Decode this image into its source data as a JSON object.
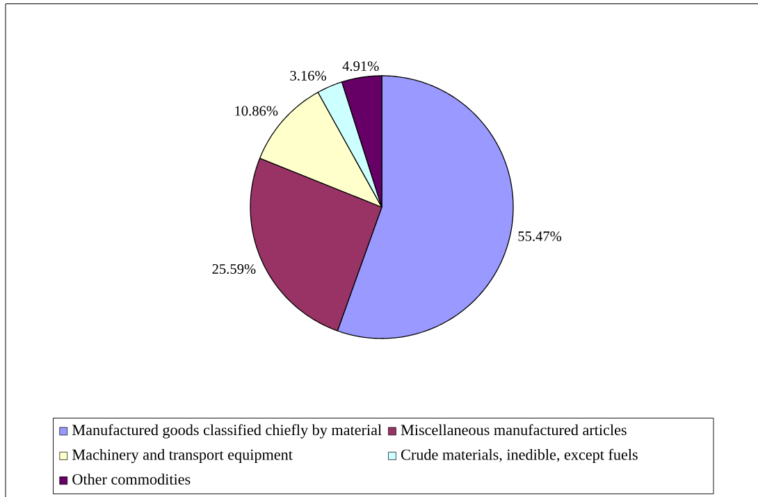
{
  "chart_data": {
    "type": "pie",
    "categories": [
      "Manufactured goods classified chiefly by material",
      "Miscellaneous manufactured articles",
      "Machinery and transport equipment",
      "Crude materials, inedible, except fuels",
      "Other commodities"
    ],
    "values": [
      55.47,
      25.59,
      10.86,
      3.16,
      4.91
    ],
    "colors": [
      "#9999ff",
      "#993366",
      "#ffffcc",
      "#ccffff",
      "#660066"
    ],
    "value_labels": [
      "55.47%",
      "25.59%",
      "10.86%",
      "3.16%",
      "4.91%"
    ],
    "legend": "bottom"
  }
}
